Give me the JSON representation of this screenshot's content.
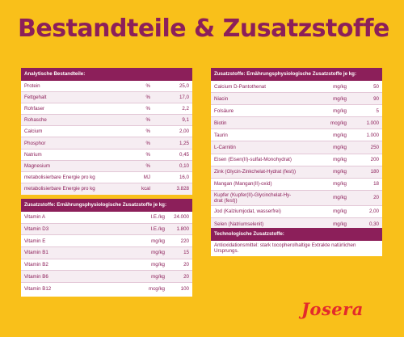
{
  "title": "Bestandteile & Zusatzstoffe",
  "analytical": {
    "heading": "Analytische Bestandteile:",
    "rows": [
      {
        "name": "Protein",
        "unit": "%",
        "value": "25,0"
      },
      {
        "name": "Fettgehalt",
        "unit": "%",
        "value": "17,0"
      },
      {
        "name": "Rohfaser",
        "unit": "%",
        "value": "2,2"
      },
      {
        "name": "Rohasche",
        "unit": "%",
        "value": "9,1"
      },
      {
        "name": "Calcium",
        "unit": "%",
        "value": "2,00"
      },
      {
        "name": "Phosphor",
        "unit": "%",
        "value": "1,25"
      },
      {
        "name": "Natrium",
        "unit": "%",
        "value": "0,45"
      },
      {
        "name": "Magnesium",
        "unit": "%",
        "value": "0,10"
      },
      {
        "name": "metabolisierbare Energie pro kg",
        "unit": "MJ",
        "value": "16,0"
      },
      {
        "name": "metabolisierbare Energie pro kg",
        "unit": "kcal",
        "value": "3.828"
      }
    ]
  },
  "vitamins": {
    "heading": "Zusatzstoffe: Ernährungsphysiologische Zusatzstoffe je kg:",
    "rows": [
      {
        "name": "Vitamin A",
        "unit": "I.E./kg",
        "value": "24.000"
      },
      {
        "name": "Vitamin D3",
        "unit": "I.E./kg",
        "value": "1.800"
      },
      {
        "name": "Vitamin E",
        "unit": "mg/kg",
        "value": "220"
      },
      {
        "name": "Vitamin B1",
        "unit": "mg/kg",
        "value": "15"
      },
      {
        "name": "Vitamin B2",
        "unit": "mg/kg",
        "value": "20"
      },
      {
        "name": "Vitamin B6",
        "unit": "mg/kg",
        "value": "20"
      },
      {
        "name": "Vitamin B12",
        "unit": "mcg/kg",
        "value": "100"
      }
    ]
  },
  "additives": {
    "heading": "Zusatzstoffe: Ernährungsphysiologische Zusatzstoffe je kg:",
    "rows": [
      {
        "name": "Calcium D-Pantothenat",
        "unit": "mg/kg",
        "value": "50"
      },
      {
        "name": "Niacin",
        "unit": "mg/kg",
        "value": "90"
      },
      {
        "name": "Folsäure",
        "unit": "mg/kg",
        "value": "5"
      },
      {
        "name": "Biotin",
        "unit": "mcg/kg",
        "value": "1.000"
      },
      {
        "name": "Taurin",
        "unit": "mg/kg",
        "value": "1.000"
      },
      {
        "name": "L-Carnitin",
        "unit": "mg/kg",
        "value": "250"
      },
      {
        "name": "Eisen (Eisen(II)-sulfat-Monohydrat)",
        "unit": "mg/kg",
        "value": "200"
      },
      {
        "name": "Zink (Glycin-Zinkchelat-Hydrat (fest))",
        "unit": "mg/kg",
        "value": "180"
      },
      {
        "name": "Mangan (Mangan(II)-oxid)",
        "unit": "mg/kg",
        "value": "18"
      },
      {
        "name": "Kupfer (Kupfer(II)-Glycinchelat-Hy-\ndrat (fest))",
        "unit": "mg/kg",
        "value": "20"
      },
      {
        "name": "Jod (Kalziumjodat, wasserfrei)",
        "unit": "mg/kg",
        "value": "2,00"
      },
      {
        "name": "Selen (Natriumselenit)",
        "unit": "mg/kg",
        "value": "0,30"
      }
    ]
  },
  "technological": {
    "heading": "Technologische Zusatzstoffe:",
    "text": "Antioxidationsmittel: stark tocopherolhaltige Extrakte natürlichen Ursprungs."
  },
  "logo": {
    "text": "Josera",
    "color": "#e32b2b"
  },
  "colors": {
    "background": "#f9c01a",
    "accent": "#8c1f5a"
  }
}
